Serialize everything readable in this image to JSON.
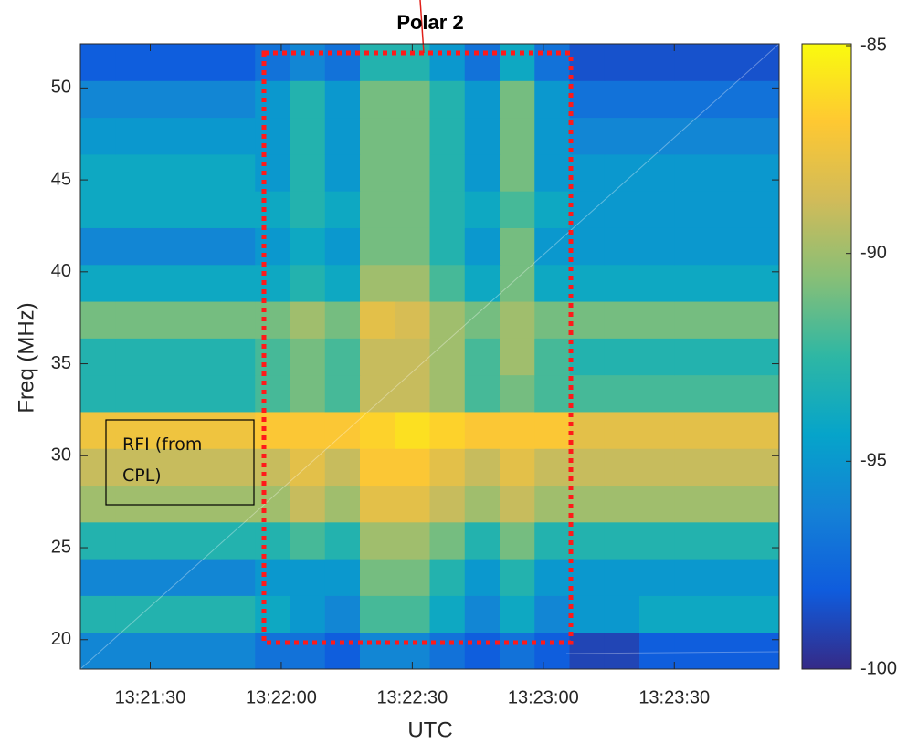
{
  "chart_data": {
    "type": "heatmap",
    "title": "Polar 2",
    "xlabel": "UTC",
    "ylabel": "Freq (MHz)",
    "colormap": "parula",
    "x": [
      48078,
      48086,
      48094,
      48102,
      48110,
      48118,
      48126,
      48134,
      48142,
      48150,
      48158,
      48166,
      48174,
      48182,
      48190,
      48198,
      48206,
      48214,
      48222,
      48230
    ],
    "y": [
      19.4,
      21.4,
      23.4,
      25.4,
      27.4,
      29.4,
      31.4,
      33.4,
      35.4,
      37.4,
      39.4,
      41.4,
      43.4,
      45.4,
      47.4,
      49.4,
      51.4
    ],
    "values": [
      [
        -96,
        -96,
        -96,
        -96,
        -96,
        -97,
        -97,
        -98,
        -96,
        -96,
        -97,
        -98,
        -97,
        -98,
        -99,
        -99,
        -98,
        -98,
        -98,
        -98
      ],
      [
        -93,
        -93,
        -93,
        -93,
        -93,
        -94,
        -95,
        -96,
        -92,
        -92,
        -94,
        -96,
        -94,
        -96,
        -95,
        -95,
        -94,
        -94,
        -94,
        -94
      ],
      [
        -96,
        -96,
        -96,
        -96,
        -96,
        -95,
        -95,
        -95,
        -91,
        -91,
        -93,
        -95,
        -93,
        -95,
        -95,
        -95,
        -95,
        -95,
        -95,
        -95
      ],
      [
        -93,
        -93,
        -93,
        -93,
        -93,
        -93,
        -92,
        -93,
        -90,
        -90,
        -91,
        -93,
        -91,
        -93,
        -93,
        -93,
        -93,
        -93,
        -93,
        -93
      ],
      [
        -90,
        -90,
        -90,
        -90,
        -90,
        -90,
        -89,
        -90,
        -88,
        -88,
        -89,
        -90,
        -89,
        -90,
        -90,
        -90,
        -90,
        -90,
        -90,
        -90
      ],
      [
        -89,
        -89,
        -89,
        -89,
        -89,
        -89,
        -88,
        -89,
        -87,
        -87,
        -88,
        -89,
        -88,
        -89,
        -89,
        -89,
        -89,
        -89,
        -89,
        -89
      ],
      [
        -87.5,
        -87.5,
        -87.5,
        -87.5,
        -87.5,
        -87,
        -87,
        -87,
        -86.5,
        -86,
        -86.5,
        -87,
        -87,
        -87,
        -88,
        -88,
        -88,
        -88,
        -88,
        -88
      ],
      [
        -93,
        -93,
        -93,
        -93,
        -93,
        -92,
        -91,
        -92,
        -89,
        -89,
        -90,
        -92,
        -91,
        -92,
        -92,
        -92,
        -92,
        -92,
        -92,
        -92
      ],
      [
        -93,
        -93,
        -93,
        -93,
        -93,
        -92,
        -91,
        -92,
        -89,
        -89,
        -90,
        -92,
        -90,
        -92,
        -93,
        -93,
        -93,
        -93,
        -93,
        -93
      ],
      [
        -91,
        -91,
        -91,
        -91,
        -91,
        -91,
        -90,
        -91,
        -88,
        -88.5,
        -90,
        -91,
        -90,
        -91,
        -91,
        -91,
        -91,
        -91,
        -91,
        -91
      ],
      [
        -94,
        -94,
        -94,
        -94,
        -94,
        -94,
        -93,
        -94,
        -90,
        -90,
        -92,
        -94,
        -91,
        -94,
        -94,
        -94,
        -94,
        -94,
        -94,
        -94
      ],
      [
        -96,
        -96,
        -96,
        -96,
        -96,
        -95,
        -94,
        -95,
        -91,
        -91,
        -93,
        -95,
        -91,
        -95,
        -95,
        -95,
        -95,
        -95,
        -95,
        -95
      ],
      [
        -94,
        -94,
        -94,
        -94,
        -94,
        -94,
        -93,
        -94,
        -91,
        -91,
        -93,
        -94,
        -92,
        -94,
        -95,
        -95,
        -95,
        -95,
        -95,
        -95
      ],
      [
        -94,
        -94,
        -94,
        -94,
        -94,
        -95,
        -93,
        -95,
        -91,
        -91,
        -93,
        -95,
        -91,
        -95,
        -95,
        -95,
        -95,
        -95,
        -95,
        -95
      ],
      [
        -95,
        -95,
        -95,
        -95,
        -95,
        -95,
        -93,
        -95,
        -91,
        -91,
        -93,
        -95,
        -91,
        -95,
        -96,
        -96,
        -96,
        -96,
        -96,
        -96
      ],
      [
        -96,
        -96,
        -96,
        -96,
        -96,
        -95,
        -93,
        -95,
        -91,
        -91,
        -93,
        -95,
        -91,
        -95,
        -97,
        -97,
        -97,
        -97,
        -97,
        -97
      ],
      [
        -98,
        -98,
        -98,
        -98,
        -98,
        -97,
        -96,
        -97,
        -93,
        -93,
        -95,
        -97,
        -94,
        -97,
        -98.5,
        -98.5,
        -98.5,
        -98.5,
        -98.5,
        -98.5
      ]
    ],
    "xlim": [
      48074,
      48234
    ],
    "ylim": [
      18.4,
      52.4
    ],
    "xticks": [
      {
        "value": 48090,
        "label": "13:21:30"
      },
      {
        "value": 48120,
        "label": "13:22:00"
      },
      {
        "value": 48150,
        "label": "13:22:30"
      },
      {
        "value": 48180,
        "label": "13:23:00"
      },
      {
        "value": 48210,
        "label": "13:23:30"
      }
    ],
    "yticks": [
      20,
      25,
      30,
      35,
      40,
      45,
      50
    ],
    "clim": [
      -100,
      -85
    ],
    "cticks": [
      -85,
      -90,
      -95,
      -100
    ],
    "annotations": [
      "RFI (from CPL)"
    ]
  }
}
